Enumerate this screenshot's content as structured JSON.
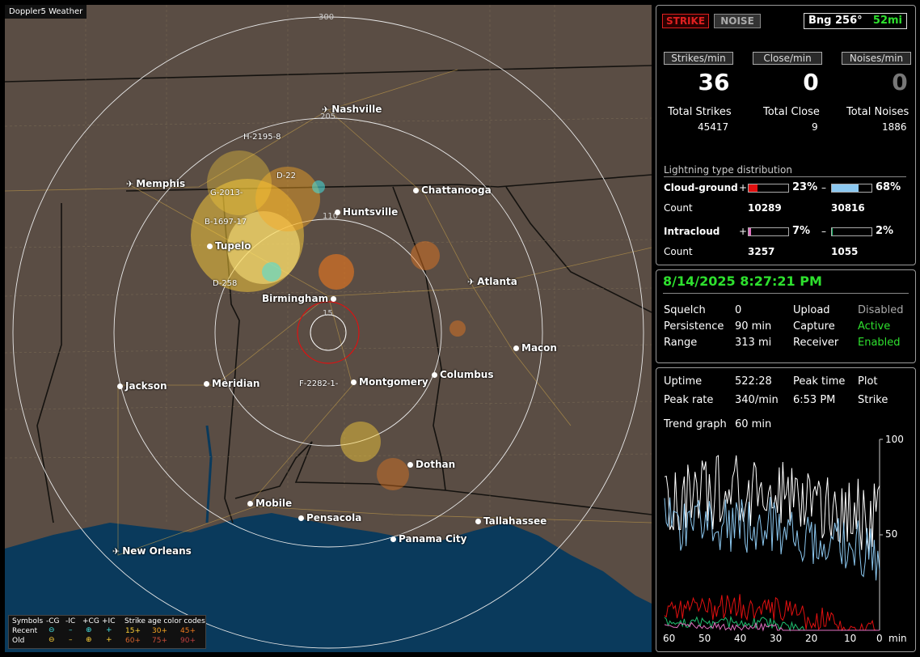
{
  "app": {
    "title": "Doppler5 Weather"
  },
  "map": {
    "ring_labels": [
      "300",
      "205",
      "110",
      "15"
    ],
    "cities": [
      {
        "name": "Nashville",
        "kind": "airport"
      },
      {
        "name": "Memphis",
        "kind": "airport"
      },
      {
        "name": "Chattanooga",
        "kind": "city"
      },
      {
        "name": "Huntsville",
        "kind": "city"
      },
      {
        "name": "Tupelo",
        "kind": "city"
      },
      {
        "name": "Atlanta",
        "kind": "airport"
      },
      {
        "name": "Birmingham",
        "kind": "city"
      },
      {
        "name": "Macon",
        "kind": "city"
      },
      {
        "name": "Jackson",
        "kind": "city"
      },
      {
        "name": "Meridian",
        "kind": "city"
      },
      {
        "name": "Montgomery",
        "kind": "city"
      },
      {
        "name": "Columbus",
        "kind": "city"
      },
      {
        "name": "Dothan",
        "kind": "city"
      },
      {
        "name": "Mobile",
        "kind": "city"
      },
      {
        "name": "Pensacola",
        "kind": "city"
      },
      {
        "name": "Tallahassee",
        "kind": "city"
      },
      {
        "name": "Panama City",
        "kind": "city"
      },
      {
        "name": "New Orleans",
        "kind": "airport"
      }
    ],
    "tracks": [
      "H-2195-8",
      "D-22",
      "G-2013-",
      "B-1697-17",
      "D-258",
      "F-2282-1-"
    ],
    "legend": {
      "symbols": "Symbols",
      "cg_neg": "-CG",
      "ic_neg": "-IC",
      "cg_pos": "+CG",
      "ic_pos": "+IC",
      "age_title": "Strike age color codes",
      "recent": "Recent",
      "old": "Old",
      "ages_recent": [
        "15+",
        "30+",
        "45+"
      ],
      "ages_old": [
        "60+",
        "75+",
        "90+"
      ],
      "age_colors": [
        "#ffd23a",
        "#f6a623",
        "#ee7a1e",
        "#d4622c",
        "#cc4f3a",
        "#c04040"
      ]
    }
  },
  "status": {
    "strike": "STRIKE",
    "noise": "NOISE",
    "bearing": "Bng 256°",
    "distance": "52mi",
    "headers": [
      "Strikes/min",
      "Close/min",
      "Noises/min"
    ],
    "rates": [
      "36",
      "0",
      "0"
    ],
    "total_labels": [
      "Total Strikes",
      "Total Close",
      "Total Noises"
    ],
    "totals": [
      "45417",
      "9",
      "1886"
    ],
    "dist_title": "Lightning type distribution",
    "cg_label": "Cloud-ground",
    "ic_label": "Intracloud",
    "count_label": "Count",
    "plus": "+",
    "minus": "–",
    "cg_pos_pct": "23%",
    "cg_neg_pct": "68%",
    "ic_pos_pct": "7%",
    "ic_neg_pct": "2%",
    "cg_pos_frac": 0.23,
    "cg_neg_frac": 0.68,
    "ic_pos_frac": 0.07,
    "ic_neg_frac": 0.02,
    "cg_pos_count": "10289",
    "cg_neg_count": "30816",
    "ic_pos_count": "3257",
    "ic_neg_count": "1055",
    "colors": {
      "cg_pos": "#e01010",
      "cg_neg": "#8cc8f0",
      "ic_pos": "#e070c0",
      "ic_neg": "#20c070"
    }
  },
  "settings": {
    "datetime": "8/14/2025 8:27:21 PM",
    "squelch_label": "Squelch",
    "squelch": "0",
    "persistence_label": "Persistence",
    "persistence": "90 min",
    "range_label": "Range",
    "range": "313 mi",
    "upload_label": "Upload",
    "upload": "Disabled",
    "capture_label": "Capture",
    "capture": "Active",
    "receiver_label": "Receiver",
    "receiver": "Enabled"
  },
  "trend": {
    "uptime_label": "Uptime",
    "uptime": "522:28",
    "peak_time_label": "Peak time",
    "peak_time": "6:53 PM",
    "plot_label": "Plot",
    "plot": "Strike",
    "peak_rate_label": "Peak rate",
    "peak_rate": "340/min",
    "graph_label": "Trend graph",
    "graph_span": "60 min",
    "y_ticks": [
      "100",
      "50"
    ],
    "x_ticks": [
      "60",
      "50",
      "40",
      "30",
      "20",
      "10",
      "0"
    ],
    "x_unit": "min"
  }
}
